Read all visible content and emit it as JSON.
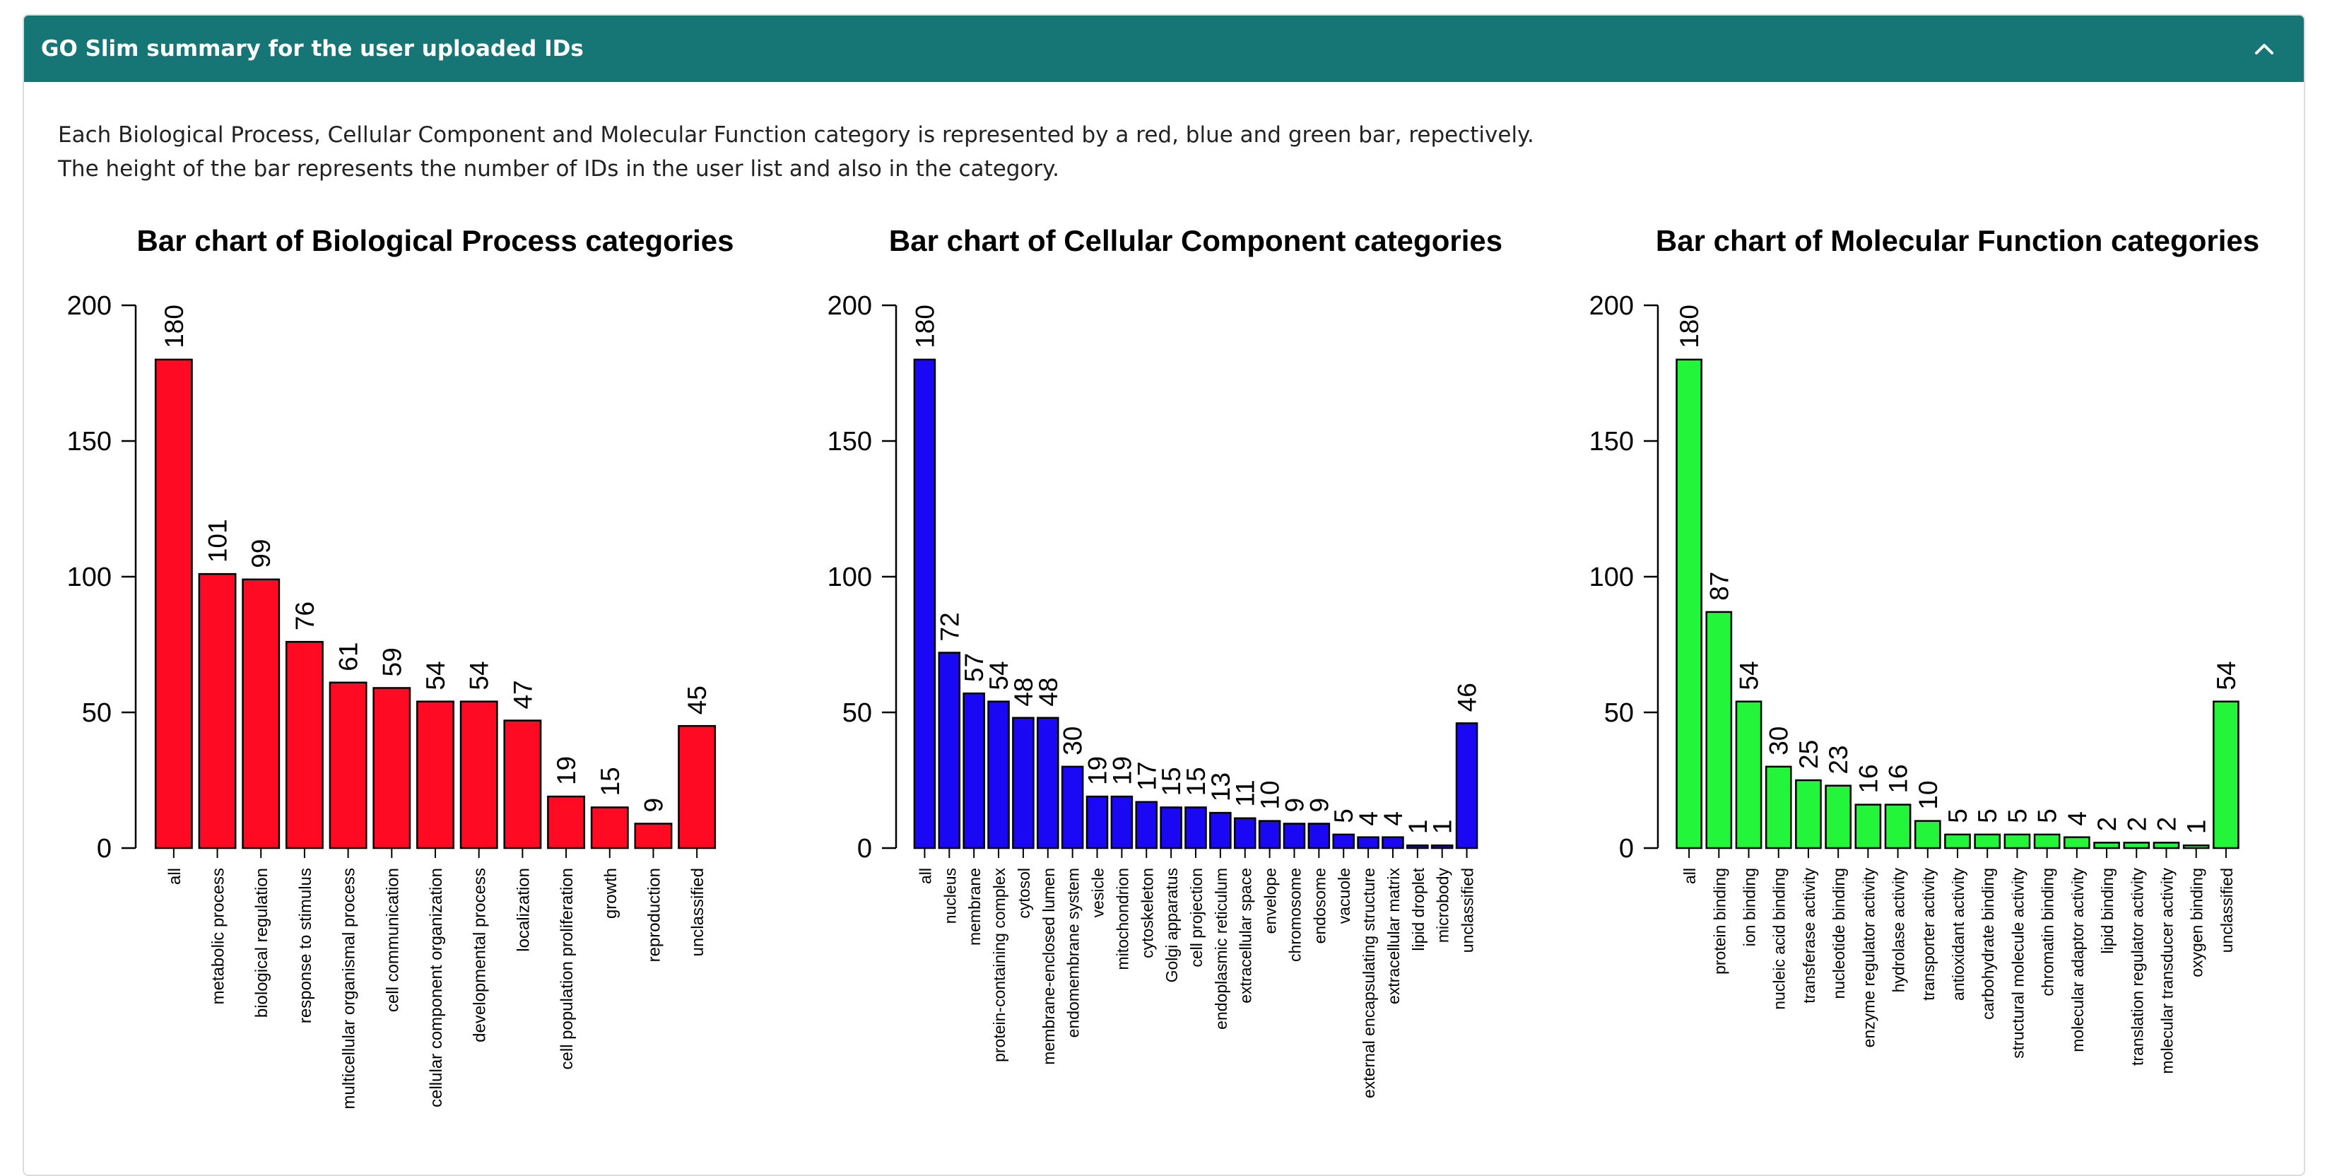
{
  "panel": {
    "title": "GO Slim summary for the user uploaded IDs",
    "collapse_icon": "chevron-up-icon",
    "header_color": "#167676"
  },
  "description": {
    "line1": "Each Biological Process, Cellular Component and Molecular Function category is represented by a red, blue and green bar, repectively.",
    "line2": "The height of the bar represents the number of IDs in the user list and also in the category."
  },
  "chart_data": [
    {
      "type": "bar",
      "title": "Bar chart of Biological Process categories",
      "color": "#ff0a22",
      "ylim": [
        0,
        200
      ],
      "yticks": [
        0,
        50,
        100,
        150,
        200
      ],
      "categories": [
        "all",
        "metabolic process",
        "biological regulation",
        "response to stimulus",
        "multicellular organismal process",
        "cell communication",
        "cellular component organization",
        "developmental process",
        "localization",
        "cell population proliferation",
        "growth",
        "reproduction",
        "unclassified"
      ],
      "values": [
        180,
        101,
        99,
        76,
        61,
        59,
        54,
        54,
        47,
        19,
        15,
        9,
        45
      ]
    },
    {
      "type": "bar",
      "title": "Bar chart of Cellular Component categories",
      "color": "#1a08f5",
      "ylim": [
        0,
        200
      ],
      "yticks": [
        0,
        50,
        100,
        150,
        200
      ],
      "categories": [
        "all",
        "nucleus",
        "membrane",
        "protein-containing complex",
        "cytosol",
        "membrane-enclosed lumen",
        "endomembrane system",
        "vesicle",
        "mitochondrion",
        "cytoskeleton",
        "Golgi apparatus",
        "cell projection",
        "endoplasmic reticulum",
        "extracellular space",
        "envelope",
        "chromosome",
        "endosome",
        "vacuole",
        "external encapsulating structure",
        "extracellular matrix",
        "lipid droplet",
        "microbody",
        "unclassified"
      ],
      "values": [
        180,
        72,
        57,
        54,
        48,
        48,
        30,
        19,
        19,
        17,
        15,
        15,
        13,
        11,
        10,
        9,
        9,
        5,
        4,
        4,
        1,
        1,
        46
      ]
    },
    {
      "type": "bar",
      "title": "Bar chart of Molecular Function categories",
      "color": "#22f53a",
      "ylim": [
        0,
        200
      ],
      "yticks": [
        0,
        50,
        100,
        150,
        200
      ],
      "categories": [
        "all",
        "protein binding",
        "ion binding",
        "nucleic acid binding",
        "transferase activity",
        "nucleotide binding",
        "enzyme regulator activity",
        "hydrolase activity",
        "transporter activity",
        "antioxidant activity",
        "carbohydrate binding",
        "structural molecule activity",
        "chromatin binding",
        "molecular adaptor activity",
        "lipid binding",
        "translation regulator activity",
        "molecular transducer activity",
        "oxygen binding",
        "unclassified"
      ],
      "values": [
        180,
        87,
        54,
        30,
        25,
        23,
        16,
        16,
        10,
        5,
        5,
        5,
        5,
        4,
        2,
        2,
        2,
        1,
        54
      ]
    }
  ]
}
